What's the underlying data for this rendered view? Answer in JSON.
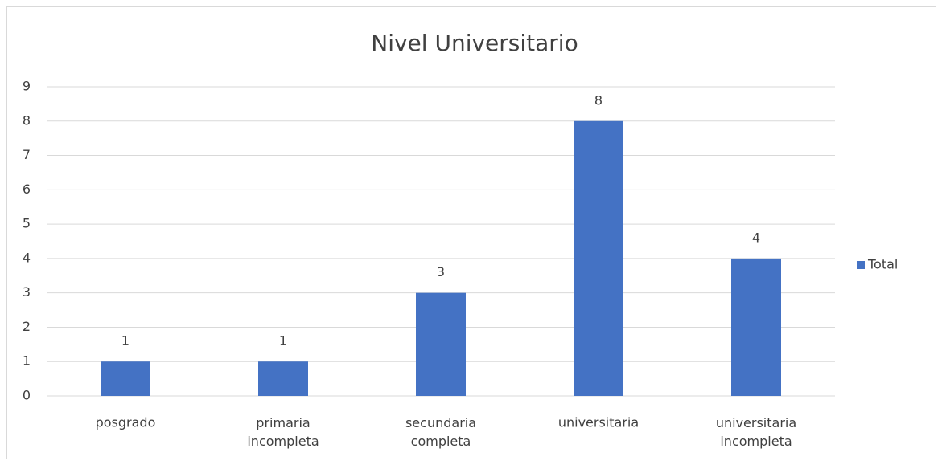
{
  "chart_data": {
    "type": "bar",
    "title": "Nivel Universitario",
    "categories": [
      "posgrado",
      "primaria incompleta",
      "secundaria completa",
      "universitaria",
      "universitaria incompleta"
    ],
    "series": [
      {
        "name": "Total",
        "color": "#4472c4",
        "values": [
          1,
          1,
          3,
          8,
          4
        ]
      }
    ],
    "ylim": [
      0,
      9
    ],
    "yticks": [
      0,
      1,
      2,
      3,
      4,
      5,
      6,
      7,
      8,
      9
    ],
    "grid": true,
    "legend": "right"
  }
}
